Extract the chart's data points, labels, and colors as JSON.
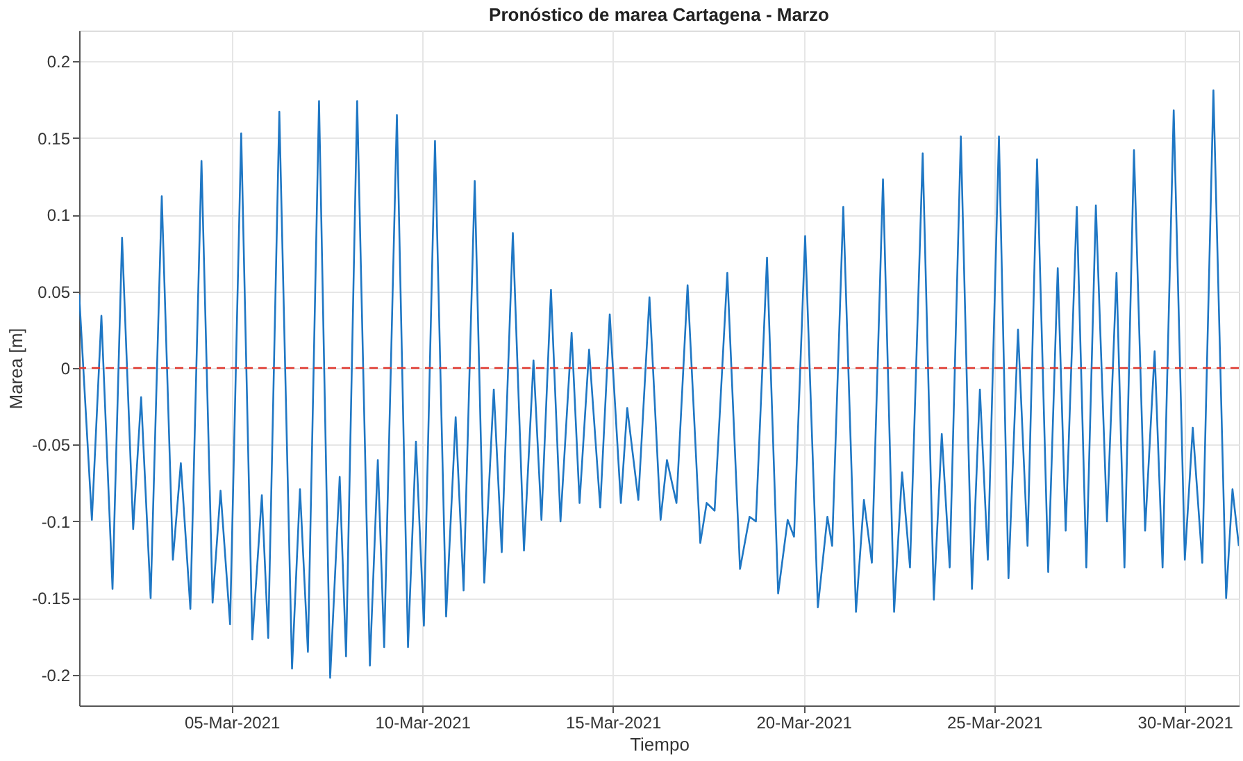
{
  "chart_data": {
    "type": "line",
    "title": "Pronóstico de marea Cartagena - Marzo",
    "xlabel": "Tiempo",
    "ylabel": "Marea [m]",
    "xlim": [
      "2021-03-01",
      "2021-03-31T10:00"
    ],
    "xticks": [
      {
        "value": "2021-03-05",
        "label": "05-Mar-2021"
      },
      {
        "value": "2021-03-10",
        "label": "10-Mar-2021"
      },
      {
        "value": "2021-03-15",
        "label": "15-Mar-2021"
      },
      {
        "value": "2021-03-20",
        "label": "20-Mar-2021"
      },
      {
        "value": "2021-03-25",
        "label": "25-Mar-2021"
      },
      {
        "value": "2021-03-30",
        "label": "30-Mar-2021"
      }
    ],
    "ylim": [
      -0.22,
      0.22
    ],
    "yticks": [
      -0.2,
      -0.15,
      -0.1,
      -0.05,
      0,
      0.05,
      0.1,
      0.15,
      0.2
    ],
    "grid": true,
    "marker": "none",
    "line_style": "solid",
    "ref_lines": [
      {
        "axis": "y",
        "value": 0,
        "color": "#e0382f",
        "line_style": "dashed"
      }
    ],
    "series": [
      {
        "color": "#1f77c4",
        "x": [
          "2021-03-01T00:00",
          "2021-03-01T08:00",
          "2021-03-01T14:00",
          "2021-03-01T21:00",
          "2021-03-02T03:00",
          "2021-03-02T10:00",
          "2021-03-02T15:00",
          "2021-03-02T21:00",
          "2021-03-03T04:00",
          "2021-03-03T11:00",
          "2021-03-03T16:00",
          "2021-03-03T22:00",
          "2021-03-04T05:00",
          "2021-03-04T12:00",
          "2021-03-04T17:00",
          "2021-03-04T23:00",
          "2021-03-05T06:00",
          "2021-03-05T13:00",
          "2021-03-05T19:00",
          "2021-03-05T23:00",
          "2021-03-06T06:00",
          "2021-03-06T14:00",
          "2021-03-06T19:00",
          "2021-03-07T00:00",
          "2021-03-07T07:00",
          "2021-03-07T14:00",
          "2021-03-07T20:00",
          "2021-03-08T00:00",
          "2021-03-08T07:00",
          "2021-03-08T15:00",
          "2021-03-08T20:00",
          "2021-03-09T00:00",
          "2021-03-09T08:00",
          "2021-03-09T15:00",
          "2021-03-09T20:00",
          "2021-03-10T01:00",
          "2021-03-10T08:00",
          "2021-03-10T15:00",
          "2021-03-10T21:00",
          "2021-03-11T02:00",
          "2021-03-11T09:00",
          "2021-03-11T15:00",
          "2021-03-11T21:00",
          "2021-03-12T02:00",
          "2021-03-12T09:00",
          "2021-03-12T16:00",
          "2021-03-12T22:00",
          "2021-03-13T03:00",
          "2021-03-13T09:00",
          "2021-03-13T15:00",
          "2021-03-13T22:00",
          "2021-03-14T03:00",
          "2021-03-14T09:00",
          "2021-03-14T16:00",
          "2021-03-14T22:00",
          "2021-03-15T05:00",
          "2021-03-15T09:00",
          "2021-03-15T16:00",
          "2021-03-15T23:00",
          "2021-03-16T06:00",
          "2021-03-16T10:00",
          "2021-03-16T16:00",
          "2021-03-16T23:00",
          "2021-03-17T07:00",
          "2021-03-17T11:00",
          "2021-03-17T16:00",
          "2021-03-18T00:00",
          "2021-03-18T08:00",
          "2021-03-18T14:00",
          "2021-03-18T18:00",
          "2021-03-19T01:00",
          "2021-03-19T08:00",
          "2021-03-19T14:00",
          "2021-03-19T18:00",
          "2021-03-20T01:00",
          "2021-03-20T09:00",
          "2021-03-20T15:00",
          "2021-03-20T18:00",
          "2021-03-21T01:00",
          "2021-03-21T09:00",
          "2021-03-21T14:00",
          "2021-03-21T19:00",
          "2021-03-22T02:00",
          "2021-03-22T09:00",
          "2021-03-22T14:00",
          "2021-03-22T19:00",
          "2021-03-23T03:00",
          "2021-03-23T10:00",
          "2021-03-23T15:00",
          "2021-03-23T20:00",
          "2021-03-24T03:00",
          "2021-03-24T10:00",
          "2021-03-24T15:00",
          "2021-03-24T20:00",
          "2021-03-25T03:00",
          "2021-03-25T09:00",
          "2021-03-25T15:00",
          "2021-03-25T21:00",
          "2021-03-26T03:00",
          "2021-03-26T10:00",
          "2021-03-26T16:00",
          "2021-03-26T21:00",
          "2021-03-27T04:00",
          "2021-03-27T10:00",
          "2021-03-27T16:00",
          "2021-03-27T23:00",
          "2021-03-28T05:00",
          "2021-03-28T10:00",
          "2021-03-28T16:00",
          "2021-03-28T23:00",
          "2021-03-29T05:00",
          "2021-03-29T10:00",
          "2021-03-29T17:00",
          "2021-03-30T00:00",
          "2021-03-30T05:00",
          "2021-03-30T11:00",
          "2021-03-30T18:00",
          "2021-03-31T02:00",
          "2021-03-31T06:00",
          "2021-03-31T10:00"
        ],
        "values": [
          0.048,
          -0.099,
          0.034,
          -0.144,
          0.085,
          -0.105,
          -0.019,
          -0.15,
          0.112,
          -0.125,
          -0.062,
          -0.157,
          0.135,
          -0.153,
          -0.08,
          -0.167,
          0.153,
          -0.177,
          -0.083,
          -0.176,
          0.167,
          -0.196,
          -0.079,
          -0.185,
          0.174,
          -0.202,
          -0.071,
          -0.188,
          0.174,
          -0.194,
          -0.06,
          -0.182,
          0.165,
          -0.182,
          -0.048,
          -0.168,
          0.148,
          -0.162,
          -0.032,
          -0.145,
          0.122,
          -0.14,
          -0.014,
          -0.12,
          0.088,
          -0.119,
          0.005,
          -0.099,
          0.051,
          -0.1,
          0.023,
          -0.088,
          0.012,
          -0.091,
          0.035,
          -0.088,
          -0.026,
          -0.086,
          0.046,
          -0.099,
          -0.06,
          -0.088,
          0.054,
          -0.114,
          -0.088,
          -0.093,
          0.062,
          -0.131,
          -0.097,
          -0.1,
          0.072,
          -0.147,
          -0.099,
          -0.11,
          0.086,
          -0.156,
          -0.097,
          -0.116,
          0.105,
          -0.159,
          -0.086,
          -0.127,
          0.123,
          -0.159,
          -0.068,
          -0.13,
          0.14,
          -0.151,
          -0.043,
          -0.13,
          0.151,
          -0.144,
          -0.014,
          -0.125,
          0.151,
          -0.137,
          0.025,
          -0.116,
          0.136,
          -0.133,
          0.065,
          -0.106,
          0.105,
          -0.13,
          0.106,
          -0.1,
          0.062,
          -0.13,
          0.142,
          -0.106,
          0.011,
          -0.13,
          0.168,
          -0.125,
          -0.039,
          -0.127,
          0.181,
          -0.15,
          -0.079,
          -0.116
        ]
      }
    ]
  }
}
